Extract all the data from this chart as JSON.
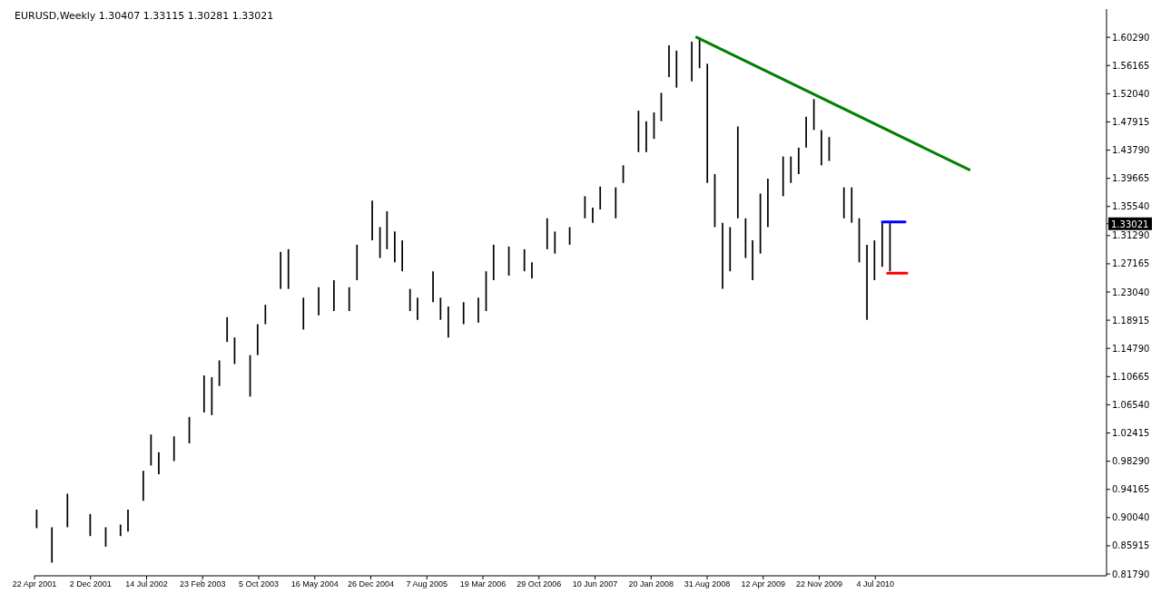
{
  "chart_data": {
    "type": "bar",
    "title": "EURUSD,Weekly  1.30407 1.33115 1.30281 1.33021",
    "xlim": [
      "2001-04-22",
      "2013-01-13"
    ],
    "xticks": [
      {
        "value": "2001-04-22",
        "label": "22 Apr 2001"
      },
      {
        "value": "2001-12-02",
        "label": "2 Dec 2001"
      },
      {
        "value": "2002-07-14",
        "label": "14 Jul 2002"
      },
      {
        "value": "2003-02-23",
        "label": "23 Feb 2003"
      },
      {
        "value": "2003-10-05",
        "label": "5 Oct 2003"
      },
      {
        "value": "2004-05-16",
        "label": "16 May 2004"
      },
      {
        "value": "2004-12-26",
        "label": "26 Dec 2004"
      },
      {
        "value": "2005-08-07",
        "label": "7 Aug 2005"
      },
      {
        "value": "2006-03-19",
        "label": "19 Mar 2006"
      },
      {
        "value": "2006-10-29",
        "label": "29 Oct 2006"
      },
      {
        "value": "2007-06-10",
        "label": "10 Jun 2007"
      },
      {
        "value": "2008-01-20",
        "label": "20 Jan 2008"
      },
      {
        "value": "2008-08-31",
        "label": "31 Aug 2008"
      },
      {
        "value": "2009-04-12",
        "label": "12 Apr 2009"
      },
      {
        "value": "2009-11-22",
        "label": "22 Nov 2009"
      },
      {
        "value": "2010-07-04",
        "label": "4 Jul 2010"
      }
    ],
    "ylim": [
      0.8153,
      1.6442
    ],
    "yticks": [
      {
        "value": 1.6029,
        "label": "1.60290"
      },
      {
        "value": 1.56165,
        "label": "1.56165"
      },
      {
        "value": 1.5204,
        "label": "1.52040"
      },
      {
        "value": 1.47915,
        "label": "1.47915"
      },
      {
        "value": 1.4379,
        "label": "1.43790"
      },
      {
        "value": 1.39665,
        "label": "1.39665"
      },
      {
        "value": 1.3554,
        "label": "1.35540"
      },
      {
        "value": 1.3129,
        "label": "1.31290"
      },
      {
        "value": 1.27165,
        "label": "1.27165"
      },
      {
        "value": 1.2304,
        "label": "1.23040"
      },
      {
        "value": 1.18915,
        "label": "1.18915"
      },
      {
        "value": 1.1479,
        "label": "1.14790"
      },
      {
        "value": 1.10665,
        "label": "1.10665"
      },
      {
        "value": 1.0654,
        "label": "1.06540"
      },
      {
        "value": 1.02415,
        "label": "1.02415"
      },
      {
        "value": 0.9829,
        "label": "0.98290"
      },
      {
        "value": 0.94165,
        "label": "0.94165"
      },
      {
        "value": 0.9004,
        "label": "0.90040"
      },
      {
        "value": 0.85915,
        "label": "0.85915"
      },
      {
        "value": 0.8179,
        "label": "0.81790"
      }
    ],
    "marker": "none",
    "ref_lines": [
      {
        "axis": "y",
        "value": 1.33021,
        "label": "1.33021",
        "color": "#000000"
      }
    ],
    "series": [
      {
        "color": "#000000",
        "x": [
          "2001-05",
          "2001-07",
          "2001-09",
          "2001-12",
          "2002-02",
          "2002-04",
          "2002-05",
          "2002-07",
          "2002-08",
          "2002-09",
          "2002-11",
          "2003-01",
          "2003-03",
          "2003-04",
          "2003-05",
          "2003-06",
          "2003-07",
          "2003-09",
          "2003-10",
          "2003-11",
          "2004-01",
          "2004-02",
          "2004-04",
          "2004-06",
          "2004-08",
          "2004-10",
          "2004-11",
          "2005-01",
          "2005-02",
          "2005-03",
          "2005-04",
          "2005-05",
          "2005-06",
          "2005-07",
          "2005-09",
          "2005-10",
          "2005-11",
          "2006-01",
          "2006-03",
          "2006-04",
          "2006-05",
          "2006-07",
          "2006-09",
          "2006-10",
          "2006-12",
          "2007-01",
          "2007-03",
          "2007-05",
          "2007-06",
          "2007-07",
          "2007-09",
          "2007-10",
          "2007-12",
          "2008-01",
          "2008-02",
          "2008-03",
          "2008-04",
          "2008-05",
          "2008-07",
          "2008-08",
          "2008-09",
          "2008-10",
          "2008-11",
          "2008-12",
          "2009-01",
          "2009-02",
          "2009-03",
          "2009-04",
          "2009-05",
          "2009-07",
          "2009-08",
          "2009-09",
          "2009-10",
          "2009-11",
          "2009-12",
          "2010-01",
          "2010-03",
          "2010-04",
          "2010-05",
          "2010-06",
          "2010-07",
          "2010-08",
          "2010-09"
        ],
        "base": [
          0.885,
          0.8346,
          0.8863,
          0.8734,
          0.8579,
          0.8734,
          0.8798,
          0.925,
          0.9767,
          0.9637,
          0.9831,
          1.009,
          1.0542,
          1.0503,
          1.0929,
          1.1574,
          1.1251,
          1.0774,
          1.1381,
          1.1833,
          1.2349,
          1.2349,
          1.1755,
          1.1962,
          1.2026,
          1.2026,
          1.2478,
          1.3059,
          1.2801,
          1.293,
          1.2737,
          1.2607,
          1.2026,
          1.1897,
          1.2155,
          1.1897,
          1.1639,
          1.1833,
          1.1858,
          1.2026,
          1.2478,
          1.2543,
          1.2607,
          1.2504,
          1.293,
          1.2866,
          1.2995,
          1.3382,
          1.3317,
          1.3511,
          1.3382,
          1.3899,
          1.435,
          1.435,
          1.4544,
          1.4802,
          1.5448,
          1.5293,
          1.5383,
          1.5577,
          1.3899,
          1.3253,
          1.2349,
          1.2607,
          1.3382,
          1.2801,
          1.2478,
          1.2866,
          1.3253,
          1.3705,
          1.3899,
          1.4028,
          1.4415,
          1.4673,
          1.4157,
          1.4221,
          1.3382,
          1.3317,
          1.2737,
          1.1897,
          1.2478,
          1.2672,
          1.2607
        ],
        "values": [
          0.0271,
          0.0517,
          0.049,
          0.0323,
          0.0284,
          0.0168,
          0.0323,
          0.0439,
          0.0452,
          0.0323,
          0.0362,
          0.0387,
          0.0542,
          0.0555,
          0.0374,
          0.0362,
          0.0388,
          0.0607,
          0.0452,
          0.0284,
          0.0542,
          0.0581,
          0.0465,
          0.0413,
          0.0452,
          0.0349,
          0.0517,
          0.0581,
          0.0452,
          0.0555,
          0.0451,
          0.0452,
          0.0323,
          0.0323,
          0.0452,
          0.0323,
          0.0452,
          0.0322,
          0.0362,
          0.0581,
          0.0517,
          0.0426,
          0.0323,
          0.0233,
          0.0452,
          0.0322,
          0.0258,
          0.0323,
          0.022,
          0.0336,
          0.0452,
          0.0258,
          0.0607,
          0.0452,
          0.0387,
          0.0414,
          0.0465,
          0.0542,
          0.0581,
          0.0452,
          0.1743,
          0.0775,
          0.0968,
          0.0646,
          0.1343,
          0.0581,
          0.0581,
          0.0878,
          0.071,
          0.0581,
          0.0387,
          0.0387,
          0.0452,
          0.0452,
          0.0516,
          0.0349,
          0.0452,
          0.0517,
          0.0645,
          0.1098,
          0.0581,
          0.0648,
          0.0705
        ]
      },
      {
        "type": "line",
        "color": "#008000",
        "x": [
          "2008-07-20",
          "2011-07-14"
        ],
        "values": [
          1.6029,
          1.4092
        ]
      },
      {
        "type": "line",
        "color": "#0000ff",
        "x": [
          "2010-08-01",
          "2010-10-31"
        ],
        "values": [
          1.333,
          1.333
        ]
      },
      {
        "type": "line",
        "color": "#ff0000",
        "x": [
          "2010-08-22",
          "2010-11-07"
        ],
        "values": [
          1.258,
          1.258
        ]
      }
    ]
  }
}
